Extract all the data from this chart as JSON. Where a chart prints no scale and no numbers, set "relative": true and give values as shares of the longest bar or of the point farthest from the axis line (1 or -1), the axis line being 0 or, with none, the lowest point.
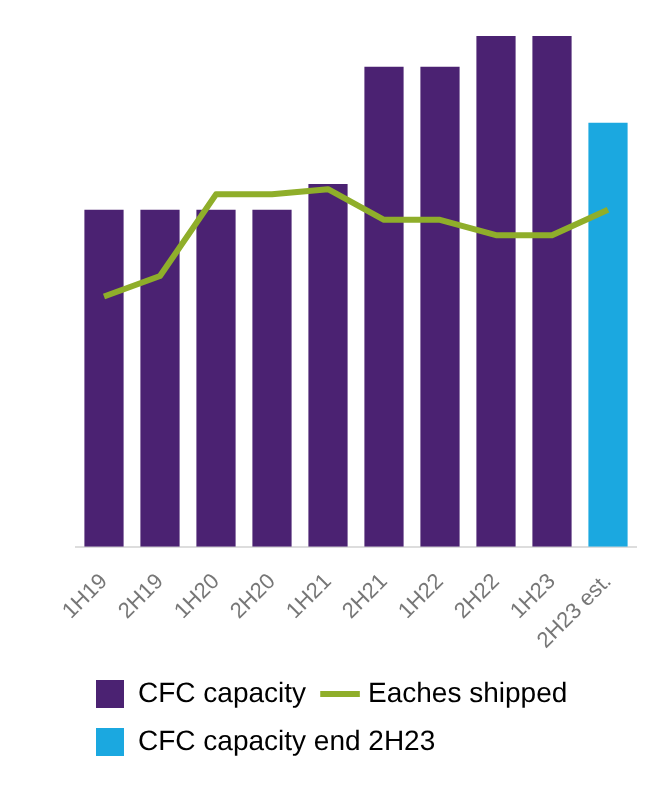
{
  "chart_data": {
    "type": "bar",
    "relative": true,
    "legend": "bottom",
    "categories": [
      "1H19",
      "2H19",
      "1H20",
      "2H20",
      "1H21",
      "2H21",
      "1H22",
      "2H22",
      "1H23",
      "2H23 est."
    ],
    "series": [
      {
        "name": "CFC capacity",
        "color": "#4b2272",
        "values": [
          0.66,
          0.66,
          0.66,
          0.66,
          0.71,
          0.94,
          0.94,
          1,
          1,
          null
        ]
      },
      {
        "name": "Eaches shipped",
        "type": "line",
        "color": "#8fae2a",
        "values": [
          0.49,
          0.53,
          0.69,
          0.69,
          0.7,
          0.64,
          0.64,
          0.61,
          0.61,
          0.66
        ]
      },
      {
        "name": "CFC capacity end 2H23",
        "color": "#1ba8e0",
        "values": [
          null,
          null,
          null,
          null,
          null,
          null,
          null,
          null,
          null,
          0.83
        ]
      }
    ]
  }
}
